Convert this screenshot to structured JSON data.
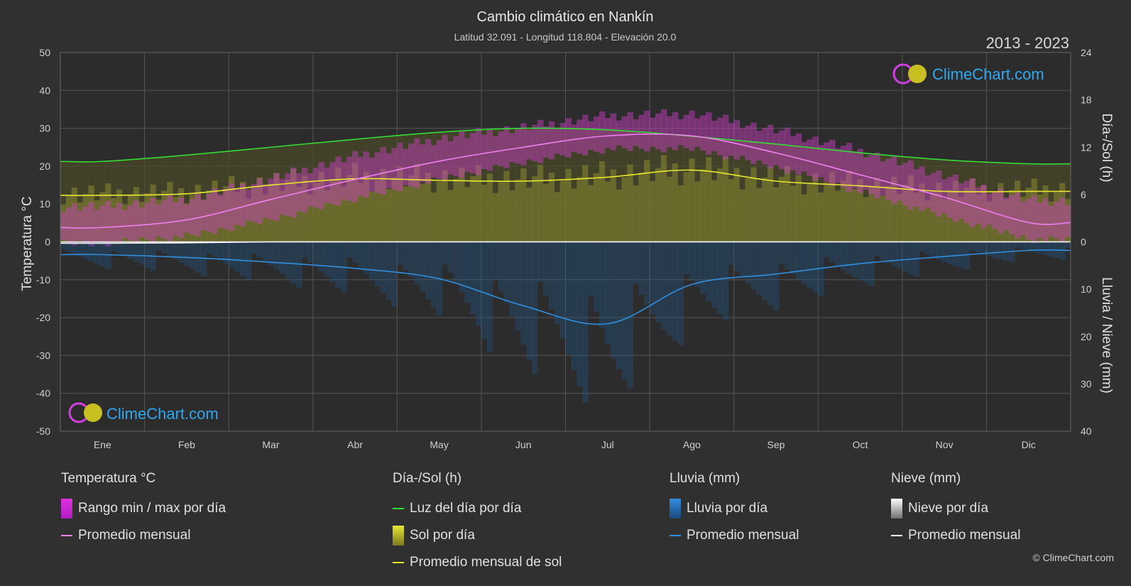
{
  "chart_data": {
    "type": "line",
    "title": "Cambio climático en Nankín",
    "subtitle": "Latitud 32.091 - Longitud 118.804 - Elevación 20.0",
    "period": "2013 - 2023",
    "watermark": "ClimeChart.com",
    "copyright": "© ClimeChart.com",
    "categories": [
      "Ene",
      "Feb",
      "Mar",
      "Abr",
      "May",
      "Jun",
      "Jul",
      "Ago",
      "Sep",
      "Oct",
      "Nov",
      "Dic"
    ],
    "y_left": {
      "label": "Temperatura °C",
      "ylim": [
        -50,
        50
      ],
      "ticks": [
        50,
        40,
        30,
        20,
        10,
        0,
        -10,
        -20,
        -30,
        -40,
        -50
      ]
    },
    "y_right_top": {
      "label": "Día-/Sol (h)",
      "ylim": [
        0,
        24
      ],
      "ticks": [
        24,
        18,
        12,
        6,
        0
      ]
    },
    "y_right_bottom": {
      "label": "Lluvia / Nieve (mm)",
      "ylim": [
        0,
        40
      ],
      "ticks": [
        0,
        10,
        20,
        30,
        40
      ]
    },
    "grid": true,
    "series": [
      {
        "name": "Luz del día por día",
        "axis": "sun_h",
        "color": "#33dd33",
        "values": [
          10.2,
          11.0,
          12.0,
          13.0,
          13.9,
          14.4,
          14.2,
          13.4,
          12.4,
          11.3,
          10.4,
          9.9
        ]
      },
      {
        "name": "Promedio mensual de sol",
        "axis": "sun_h",
        "color": "#e8e830",
        "values": [
          5.9,
          6.1,
          7.2,
          8.0,
          7.8,
          7.7,
          8.2,
          9.1,
          7.7,
          7.1,
          6.4,
          6.4
        ]
      },
      {
        "name": "Promedio mensual",
        "group": "temperature",
        "axis": "temp_c",
        "color": "#f080f0",
        "values": [
          3.8,
          5.8,
          11.2,
          16.5,
          21.3,
          25.0,
          28.0,
          28.0,
          23.5,
          17.7,
          11.8,
          5.1
        ]
      },
      {
        "name": "Promedio mensual",
        "group": "rain",
        "axis": "rain_mm",
        "color": "#2f8fe0",
        "values": [
          2.7,
          3.3,
          4.3,
          5.6,
          7.8,
          13.5,
          17.3,
          9.0,
          6.8,
          4.6,
          3.1,
          1.8
        ]
      },
      {
        "name": "Promedio mensual",
        "group": "snow",
        "axis": "rain_mm",
        "color": "#ffffff",
        "values": [
          0.3,
          0.2,
          0.0,
          0.0,
          0.0,
          0.0,
          0.0,
          0.0,
          0.0,
          0.0,
          0.0,
          0.0
        ]
      }
    ],
    "temp_range": {
      "name": "Rango min / max por día",
      "min": [
        0.5,
        2.5,
        7.0,
        12.5,
        17.5,
        22.0,
        25.5,
        25.5,
        20.5,
        14.0,
        7.5,
        1.5
      ],
      "max": [
        8.0,
        10.0,
        15.5,
        21.5,
        26.0,
        29.0,
        32.0,
        32.5,
        28.0,
        22.5,
        16.0,
        9.5
      ]
    }
  },
  "legend": {
    "temperature": {
      "heading": "Temperatura °C",
      "items": [
        "Rango min / max por día",
        "Promedio mensual"
      ]
    },
    "sun": {
      "heading": "Día-/Sol (h)",
      "items": [
        "Luz del día por día",
        "Sol por día",
        "Promedio mensual de sol"
      ]
    },
    "rain": {
      "heading": "Lluvia (mm)",
      "items": [
        "Lluvia por día",
        "Promedio mensual"
      ]
    },
    "snow": {
      "heading": "Nieve (mm)",
      "items": [
        "Nieve por día",
        "Promedio mensual"
      ]
    }
  },
  "colors": {
    "background": "#303030",
    "grid": "#5a5a5a",
    "daylight": "#33dd33",
    "sun": "#e8e830",
    "temp": "#f080f0",
    "temp_range": "#e030e0",
    "rain": "#2f8fe0",
    "snow": "#ffffff",
    "brand": "#2fa8f0"
  }
}
